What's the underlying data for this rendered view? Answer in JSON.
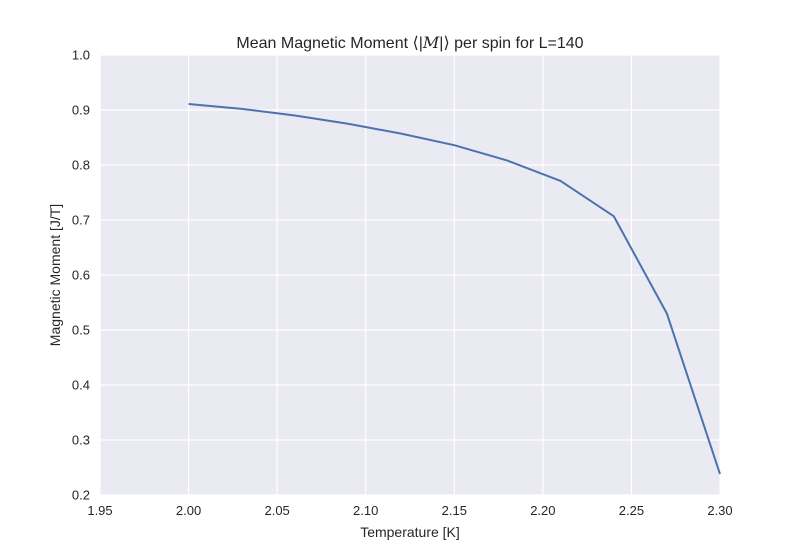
{
  "chart_data": {
    "type": "line",
    "title_prefix": "Mean Magnetic Moment",
    "title_math_open": "⟨|",
    "title_math_var": "M",
    "title_math_close": "|⟩",
    "title_suffix": "per spin for L=140",
    "xlabel": "Temperature [K]",
    "ylabel": "Magnetic Moment [J/T]",
    "xlim": [
      1.95,
      2.3
    ],
    "ylim": [
      0.2,
      1.0
    ],
    "xticks": [
      1.95,
      2.0,
      2.05,
      2.1,
      2.15,
      2.2,
      2.25,
      2.3
    ],
    "xtick_labels": [
      "1.95",
      "2.00",
      "2.05",
      "2.10",
      "2.15",
      "2.20",
      "2.25",
      "2.30"
    ],
    "yticks": [
      0.2,
      0.3,
      0.4,
      0.5,
      0.6,
      0.7,
      0.8,
      0.9,
      1.0
    ],
    "ytick_labels": [
      "0.2",
      "0.3",
      "0.4",
      "0.5",
      "0.6",
      "0.7",
      "0.8",
      "0.9",
      "1.0"
    ],
    "grid": true,
    "background_color": "#eaeaf2",
    "grid_color": "#ffffff",
    "series": [
      {
        "name": "L=140",
        "color": "#4c72b0",
        "x": [
          2.0,
          2.03,
          2.06,
          2.09,
          2.12,
          2.15,
          2.18,
          2.21,
          2.24,
          2.27,
          2.3
        ],
        "y": [
          0.911,
          0.902,
          0.89,
          0.875,
          0.857,
          0.836,
          0.808,
          0.771,
          0.707,
          0.53,
          0.238
        ]
      }
    ]
  }
}
